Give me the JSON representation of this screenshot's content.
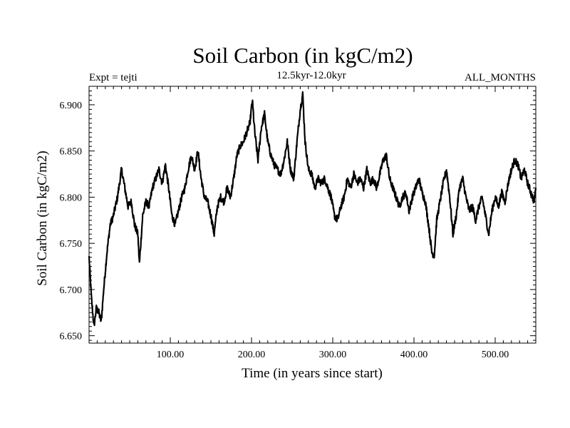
{
  "chart_data": {
    "type": "line",
    "title": "Soil Carbon (in kgC/m2)",
    "subtitle": "12.5kyr-12.0kyr",
    "annotation_left": "Expt = tejti",
    "annotation_right": "ALL_MONTHS",
    "xlabel": "Time (in years since start)",
    "ylabel": "Soil Carbon (in kgC/m2)",
    "xlim": [
      0,
      550
    ],
    "ylim": [
      6.642,
      6.92
    ],
    "x_ticks": [
      100,
      200,
      300,
      400,
      500
    ],
    "x_tick_labels": [
      "100.00",
      "200.00",
      "300.00",
      "400.00",
      "500.00"
    ],
    "y_ticks": [
      6.65,
      6.7,
      6.75,
      6.8,
      6.85,
      6.9
    ],
    "y_tick_labels": [
      "6.650",
      "6.700",
      "6.750",
      "6.800",
      "6.850",
      "6.900"
    ],
    "grid": false,
    "line_color": "#000000",
    "series": [
      {
        "x": [
          0,
          3,
          6,
          9,
          12,
          15,
          18,
          22,
          26,
          30,
          35,
          40,
          44,
          48,
          52,
          56,
          60,
          62,
          66,
          70,
          74,
          78,
          82,
          86,
          90,
          94,
          98,
          102,
          106,
          110,
          114,
          118,
          122,
          126,
          130,
          134,
          138,
          142,
          146,
          150,
          154,
          158,
          162,
          166,
          170,
          174,
          178,
          182,
          186,
          190,
          194,
          198,
          201,
          204,
          208,
          212,
          216,
          220,
          224,
          228,
          232,
          236,
          240,
          244,
          248,
          252,
          256,
          260,
          263,
          266,
          270,
          274,
          278,
          282,
          286,
          290,
          294,
          298,
          302,
          306,
          310,
          314,
          318,
          322,
          326,
          330,
          334,
          338,
          342,
          346,
          350,
          354,
          358,
          362,
          366,
          370,
          374,
          378,
          382,
          386,
          390,
          394,
          398,
          402,
          406,
          410,
          414,
          418,
          422,
          425,
          428,
          432,
          436,
          440,
          444,
          448,
          452,
          456,
          460,
          464,
          468,
          472,
          476,
          480,
          484,
          488,
          492,
          496,
          500,
          504,
          508,
          512,
          516,
          520,
          524,
          528,
          532,
          536,
          540,
          544,
          548,
          550
        ],
        "y": [
          6.735,
          6.69,
          6.66,
          6.68,
          6.675,
          6.665,
          6.7,
          6.74,
          6.77,
          6.78,
          6.8,
          6.83,
          6.81,
          6.79,
          6.795,
          6.77,
          6.76,
          6.728,
          6.78,
          6.795,
          6.79,
          6.81,
          6.82,
          6.83,
          6.815,
          6.835,
          6.81,
          6.78,
          6.77,
          6.785,
          6.8,
          6.81,
          6.83,
          6.845,
          6.83,
          6.85,
          6.82,
          6.8,
          6.795,
          6.78,
          6.76,
          6.79,
          6.8,
          6.795,
          6.81,
          6.8,
          6.82,
          6.845,
          6.855,
          6.86,
          6.87,
          6.88,
          6.905,
          6.87,
          6.84,
          6.875,
          6.89,
          6.86,
          6.845,
          6.835,
          6.83,
          6.825,
          6.84,
          6.86,
          6.83,
          6.82,
          6.86,
          6.895,
          6.912,
          6.86,
          6.83,
          6.825,
          6.81,
          6.82,
          6.815,
          6.82,
          6.81,
          6.8,
          6.78,
          6.775,
          6.79,
          6.8,
          6.82,
          6.81,
          6.825,
          6.815,
          6.82,
          6.81,
          6.83,
          6.815,
          6.82,
          6.81,
          6.825,
          6.84,
          6.845,
          6.82,
          6.81,
          6.8,
          6.79,
          6.8,
          6.805,
          6.785,
          6.8,
          6.81,
          6.82,
          6.805,
          6.795,
          6.77,
          6.74,
          6.737,
          6.775,
          6.795,
          6.815,
          6.83,
          6.8,
          6.76,
          6.78,
          6.81,
          6.82,
          6.8,
          6.785,
          6.79,
          6.775,
          6.79,
          6.8,
          6.78,
          6.76,
          6.785,
          6.8,
          6.79,
          6.805,
          6.795,
          6.815,
          6.83,
          6.84,
          6.835,
          6.82,
          6.83,
          6.815,
          6.805,
          6.795,
          6.81
        ]
      }
    ]
  }
}
